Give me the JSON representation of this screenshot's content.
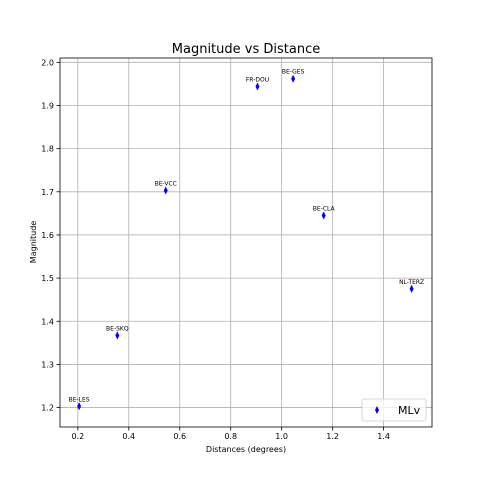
{
  "chart_data": {
    "type": "scatter",
    "title": "Magnitude vs Distance",
    "xlabel": "Distances (degrees)",
    "ylabel": "Magnitude",
    "xlim": [
      0.13,
      1.59
    ],
    "ylim": [
      1.155,
      2.01
    ],
    "xticks": [
      0.2,
      0.4,
      0.6,
      0.8,
      1.0,
      1.2,
      1.4
    ],
    "xtick_labels": [
      "0.2",
      "0.4",
      "0.6",
      "0.8",
      "1.0",
      "1.2",
      "1.4"
    ],
    "yticks": [
      1.2,
      1.3,
      1.4,
      1.5,
      1.6,
      1.7,
      1.8,
      1.9,
      2.0
    ],
    "ytick_labels": [
      "1.2",
      "1.3",
      "1.4",
      "1.5",
      "1.6",
      "1.7",
      "1.8",
      "1.9",
      "2.0"
    ],
    "grid": true,
    "legend_position": "bottom-right",
    "marker": "thin-diamond",
    "color": "#0000ff",
    "series": [
      {
        "name": "MLv",
        "points": [
          {
            "label": "BE-LES",
            "x": 0.205,
            "y": 1.203
          },
          {
            "label": "BE-SKQ",
            "x": 0.355,
            "y": 1.367
          },
          {
            "label": "BE-VCC",
            "x": 0.545,
            "y": 1.703
          },
          {
            "label": "FR-DOU",
            "x": 0.905,
            "y": 1.944
          },
          {
            "label": "BE-GES",
            "x": 1.045,
            "y": 1.962
          },
          {
            "label": "BE-CLA",
            "x": 1.165,
            "y": 1.645
          },
          {
            "label": "NL-TERZ",
            "x": 1.51,
            "y": 1.475
          }
        ]
      }
    ]
  }
}
